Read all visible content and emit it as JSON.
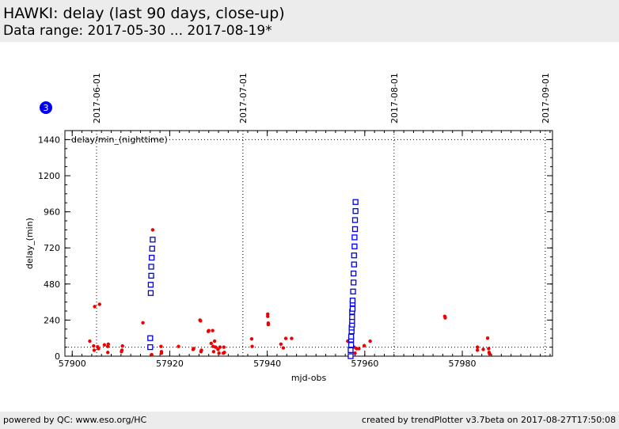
{
  "header": {
    "title": "HAWKI: delay (last 90 days, close-up)",
    "subtitle": "Data range: 2017-05-30 ... 2017-08-19*"
  },
  "footer": {
    "left": "powered by QC: www.eso.org/HC",
    "right": "created by trendPlotter v3.7beta on 2017-08-27T17:50:08"
  },
  "badge": {
    "text": "3",
    "color": "#0000ee"
  },
  "colors": {
    "points": "#ee0000",
    "squares": "#0000ee",
    "axis": "#000000"
  },
  "chart_data": {
    "type": "scatter",
    "xlabel": "mjd-obs",
    "ylabel": "delay_(min)",
    "inner_label": "delay/min_(nighttime)",
    "xlim": [
      57898.5,
      57998.5
    ],
    "ylim": [
      0,
      1500
    ],
    "xticks": [
      57900,
      57920,
      57940,
      57960,
      57980
    ],
    "yticks": [
      0,
      240,
      480,
      720,
      960,
      1200,
      1440
    ],
    "reference_lines_y": [
      60,
      1440
    ],
    "date_markers": [
      {
        "label": "2017-06-01",
        "mjd": 57905
      },
      {
        "label": "2017-07-01",
        "mjd": 57935
      },
      {
        "label": "2017-08-01",
        "mjd": 57966
      },
      {
        "label": "2017-09-01",
        "mjd": 57997
      }
    ],
    "series": [
      {
        "marker": "dot",
        "points": [
          [
            57903.6,
            100
          ],
          [
            57904.4,
            68
          ],
          [
            57904.5,
            40
          ],
          [
            57904.6,
            330
          ],
          [
            57905.2,
            62
          ],
          [
            57905.4,
            50
          ],
          [
            57905.6,
            345
          ],
          [
            57906.6,
            75
          ],
          [
            57907.3,
            65
          ],
          [
            57907.3,
            25
          ],
          [
            57907.4,
            80
          ],
          [
            57910.1,
            30
          ],
          [
            57910.2,
            40
          ],
          [
            57910.3,
            68
          ],
          [
            57914.5,
            222
          ],
          [
            57916.3,
            10
          ],
          [
            57916.5,
            840
          ],
          [
            57918.2,
            65
          ],
          [
            57918.3,
            30
          ],
          [
            57918.3,
            20
          ],
          [
            57921.8,
            65
          ],
          [
            57924.8,
            45
          ],
          [
            57924.9,
            50
          ],
          [
            57926.2,
            240
          ],
          [
            57926.3,
            235
          ],
          [
            57926.4,
            30
          ],
          [
            57926.5,
            40
          ],
          [
            57927.9,
            165
          ],
          [
            57928.0,
            170
          ],
          [
            57928.5,
            85
          ],
          [
            57928.8,
            170
          ],
          [
            57928.9,
            65
          ],
          [
            57929.0,
            30
          ],
          [
            57929.2,
            100
          ],
          [
            57929.4,
            60
          ],
          [
            57929.9,
            45
          ],
          [
            57930.1,
            20
          ],
          [
            57930.3,
            60
          ],
          [
            57931.0,
            20
          ],
          [
            57931.1,
            60
          ],
          [
            57931.2,
            25
          ],
          [
            57936.8,
            115
          ],
          [
            57936.9,
            65
          ],
          [
            57940.1,
            280
          ],
          [
            57940.1,
            265
          ],
          [
            57940.2,
            220
          ],
          [
            57940.2,
            210
          ],
          [
            57942.8,
            80
          ],
          [
            57943.3,
            55
          ],
          [
            57943.8,
            118
          ],
          [
            57945.0,
            118
          ],
          [
            57956.5,
            100
          ],
          [
            57957.3,
            35
          ],
          [
            57957.6,
            430
          ],
          [
            57957.8,
            60
          ],
          [
            57958.0,
            20
          ],
          [
            57958.3,
            50
          ],
          [
            57958.8,
            50
          ],
          [
            57959.9,
            70
          ],
          [
            57961.1,
            100
          ],
          [
            57976.4,
            265
          ],
          [
            57976.5,
            255
          ],
          [
            57983.1,
            40
          ],
          [
            57983.1,
            60
          ],
          [
            57984.3,
            45
          ],
          [
            57985.2,
            120
          ],
          [
            57985.4,
            50
          ],
          [
            57985.5,
            25
          ],
          [
            57985.6,
            15
          ]
        ]
      },
      {
        "marker": "square",
        "points": [
          [
            57916.0,
            120
          ],
          [
            57916.0,
            60
          ],
          [
            57916.1,
            420
          ],
          [
            57916.1,
            475
          ],
          [
            57916.2,
            535
          ],
          [
            57916.2,
            595
          ],
          [
            57916.3,
            655
          ],
          [
            57916.4,
            715
          ],
          [
            57916.5,
            775
          ],
          [
            57957.1,
            0
          ],
          [
            57957.1,
            40
          ],
          [
            57957.2,
            75
          ],
          [
            57957.2,
            110
          ],
          [
            57957.2,
            130
          ],
          [
            57957.3,
            165
          ],
          [
            57957.3,
            190
          ],
          [
            57957.4,
            210
          ],
          [
            57957.4,
            235
          ],
          [
            57957.4,
            260
          ],
          [
            57957.4,
            295
          ],
          [
            57957.5,
            315
          ],
          [
            57957.5,
            350
          ],
          [
            57957.5,
            370
          ],
          [
            57957.6,
            430
          ],
          [
            57957.7,
            490
          ],
          [
            57957.7,
            550
          ],
          [
            57957.8,
            610
          ],
          [
            57957.8,
            670
          ],
          [
            57957.9,
            730
          ],
          [
            57957.9,
            790
          ],
          [
            57958.0,
            845
          ],
          [
            57958.0,
            905
          ],
          [
            57958.1,
            965
          ],
          [
            57958.1,
            1025
          ]
        ]
      }
    ]
  }
}
